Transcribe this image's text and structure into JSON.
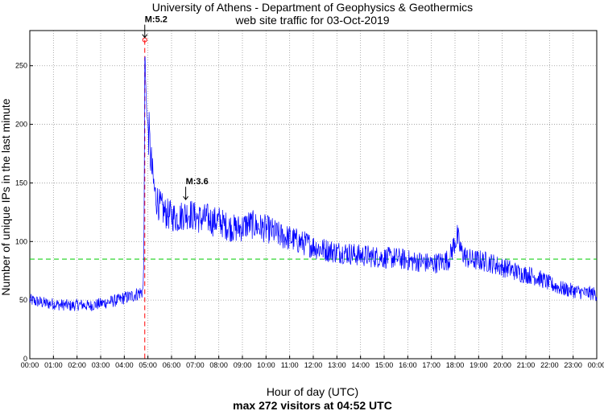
{
  "header": {
    "title": "University of Athens - Department of Geophysics & Geothermics",
    "subtitle": "web site traffic for 03-Oct-2019"
  },
  "footer": {
    "xlabel": "Hour of day (UTC)",
    "summary": "max 272 visitors at 04:52 UTC"
  },
  "chart_data": {
    "type": "line",
    "title": "University of Athens - Department of Geophysics & Geothermics",
    "subtitle": "web site traffic for 03-Oct-2019",
    "xlabel": "Hour of day (UTC)",
    "ylabel": "Number of unique IPs in the last minute",
    "xlim_hours": [
      0,
      24
    ],
    "ylim": [
      0,
      280
    ],
    "x_ticks": [
      "00:00",
      "01:00",
      "02:00",
      "03:00",
      "04:00",
      "05:00",
      "06:00",
      "07:00",
      "08:00",
      "09:00",
      "10:00",
      "11:00",
      "12:00",
      "13:00",
      "14:00",
      "15:00",
      "16:00",
      "17:00",
      "18:00",
      "19:00",
      "20:00",
      "21:00",
      "22:00",
      "23:00",
      "00:00"
    ],
    "y_ticks": [
      0,
      50,
      100,
      150,
      200,
      250
    ],
    "grid": true,
    "series": [
      {
        "color": "#0000ff",
        "x_hours": [
          0.0,
          0.25,
          0.5,
          0.75,
          1.0,
          1.25,
          1.5,
          1.75,
          2.0,
          2.25,
          2.5,
          2.75,
          3.0,
          3.25,
          3.5,
          3.75,
          4.0,
          4.25,
          4.5,
          4.75,
          4.8,
          4.83,
          4.85,
          4.87,
          4.9,
          4.95,
          5.0,
          5.05,
          5.1,
          5.2,
          5.3,
          5.5,
          5.75,
          6.0,
          6.25,
          6.5,
          6.75,
          7.0,
          7.25,
          7.5,
          7.75,
          8.0,
          8.25,
          8.5,
          8.75,
          9.0,
          9.25,
          9.5,
          9.75,
          10.0,
          10.25,
          10.5,
          10.75,
          11.0,
          11.25,
          11.5,
          11.75,
          12.0,
          12.25,
          12.5,
          12.75,
          13.0,
          13.25,
          13.5,
          13.75,
          14.0,
          14.25,
          14.5,
          14.75,
          15.0,
          15.25,
          15.5,
          15.75,
          16.0,
          16.25,
          16.5,
          16.75,
          17.0,
          17.25,
          17.5,
          17.75,
          18.0,
          18.1,
          18.25,
          18.5,
          18.75,
          19.0,
          19.25,
          19.5,
          19.75,
          20.0,
          20.25,
          20.5,
          20.75,
          21.0,
          21.25,
          21.5,
          21.75,
          22.0,
          22.25,
          22.5,
          22.75,
          23.0,
          23.25,
          23.5,
          23.75,
          24.0
        ],
        "values": [
          50,
          49,
          48,
          47,
          47,
          46,
          46,
          45,
          46,
          46,
          45,
          46,
          47,
          48,
          49,
          50,
          52,
          53,
          55,
          57,
          60,
          95,
          180,
          272,
          240,
          210,
          200,
          190,
          175,
          155,
          140,
          130,
          124,
          122,
          120,
          123,
          124,
          121,
          119,
          120,
          117,
          118,
          114,
          112,
          111,
          112,
          115,
          114,
          112,
          111,
          109,
          106,
          104,
          103,
          101,
          99,
          98,
          96,
          94,
          93,
          92,
          91,
          91,
          90,
          89,
          88,
          88,
          87,
          87,
          86,
          86,
          86,
          85,
          84,
          83,
          83,
          82,
          81,
          82,
          83,
          85,
          100,
          104,
          92,
          86,
          84,
          84,
          83,
          82,
          80,
          78,
          77,
          75,
          73,
          72,
          71,
          69,
          67,
          64,
          62,
          60,
          59,
          58,
          57,
          56,
          56,
          55
        ]
      }
    ],
    "reference_lines": [
      {
        "orientation": "horizontal",
        "y": 85,
        "color": "#00cc00",
        "style": "dashed"
      },
      {
        "orientation": "vertical",
        "x_hours": 4.867,
        "color": "#ff0000",
        "style": "dashed"
      }
    ],
    "max_marker": {
      "x_hours": 4.867,
      "y": 272,
      "color": "#ff0000"
    },
    "annotations": [
      {
        "text": "M:5.2",
        "x_hours": 4.867,
        "y": 272
      },
      {
        "text": "M:3.6",
        "x_hours": 6.6,
        "y": 133
      }
    ]
  }
}
